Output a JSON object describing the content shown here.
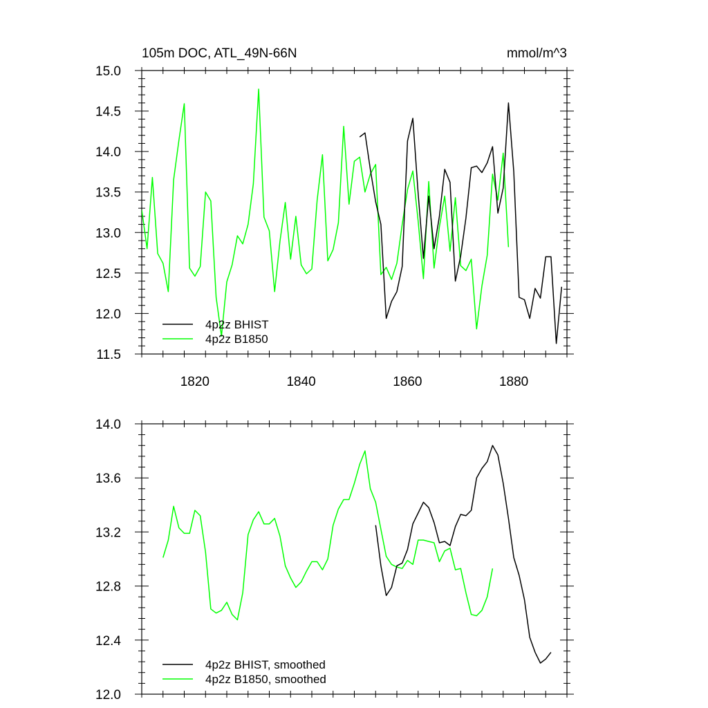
{
  "chart_data": [
    {
      "type": "line",
      "title": "105m DOC, ATL_49N-66N",
      "units": "mmol/m^3",
      "xlabel": "",
      "ylabel": "",
      "xlim": [
        1810,
        1890
      ],
      "ylim": [
        11.5,
        15.0
      ],
      "x_ticks": [
        1820,
        1840,
        1860,
        1880
      ],
      "x_tick_labels": [
        "1820",
        "1840",
        "1860",
        "1880"
      ],
      "y_ticks": [
        11.5,
        12.0,
        12.5,
        13.0,
        13.5,
        14.0,
        14.5,
        15.0
      ],
      "y_tick_labels": [
        "11.5",
        "12.0",
        "12.5",
        "13.0",
        "13.5",
        "14.0",
        "14.5",
        "15.0"
      ],
      "grid": false,
      "legend_position": "bottom-left",
      "series": [
        {
          "name": "4p2z BHIST",
          "color": "#000000",
          "x": [
            1851,
            1852,
            1853,
            1854,
            1855,
            1856,
            1857,
            1858,
            1859,
            1860,
            1861,
            1862,
            1863,
            1864,
            1865,
            1866,
            1867,
            1868,
            1869,
            1870,
            1871,
            1872,
            1873,
            1874,
            1875,
            1876,
            1877,
            1878,
            1879,
            1880,
            1881,
            1882,
            1883,
            1884,
            1885,
            1886,
            1887,
            1888,
            1889
          ],
          "y": [
            14.18,
            14.23,
            13.78,
            13.38,
            13.1,
            11.94,
            12.15,
            12.27,
            12.58,
            14.13,
            14.41,
            13.48,
            12.68,
            13.45,
            12.8,
            13.2,
            13.78,
            13.62,
            12.4,
            12.71,
            13.18,
            13.8,
            13.82,
            13.74,
            13.86,
            14.06,
            13.24,
            13.55,
            14.6,
            13.75,
            12.2,
            12.17,
            11.94,
            12.31,
            12.19,
            12.7,
            12.7,
            11.63,
            12.33
          ]
        },
        {
          "name": "4p2z B1850",
          "color": "#00ff00",
          "x": [
            1810,
            1811,
            1812,
            1813,
            1814,
            1815,
            1816,
            1817,
            1818,
            1819,
            1820,
            1821,
            1822,
            1823,
            1824,
            1825,
            1826,
            1827,
            1828,
            1829,
            1830,
            1831,
            1832,
            1833,
            1834,
            1835,
            1836,
            1837,
            1838,
            1839,
            1840,
            1841,
            1842,
            1843,
            1844,
            1845,
            1846,
            1847,
            1848,
            1849,
            1850,
            1851,
            1852,
            1853,
            1854,
            1855,
            1856,
            1857,
            1858,
            1859,
            1860,
            1861,
            1862,
            1863,
            1864,
            1865,
            1866,
            1867,
            1868,
            1869,
            1870,
            1871,
            1872,
            1873,
            1874,
            1875,
            1876,
            1877,
            1878,
            1879,
            1880
          ],
          "y": [
            13.28,
            12.8,
            13.68,
            12.74,
            12.62,
            12.27,
            13.65,
            14.14,
            14.59,
            12.56,
            12.46,
            12.58,
            13.5,
            13.39,
            12.2,
            11.72,
            12.39,
            12.6,
            12.96,
            12.86,
            13.1,
            13.6,
            14.77,
            13.19,
            13.02,
            12.27,
            12.89,
            13.37,
            12.67,
            13.2,
            12.6,
            12.49,
            12.55,
            13.4,
            13.96,
            12.65,
            12.79,
            13.12,
            14.31,
            13.35,
            13.88,
            13.93,
            13.5,
            13.72,
            13.84,
            12.48,
            12.57,
            12.42,
            12.62,
            13.1,
            13.53,
            13.76,
            13.14,
            12.43,
            13.63,
            12.56,
            13.07,
            13.45,
            12.77,
            13.43,
            12.59,
            12.53,
            12.67,
            11.81,
            12.34,
            12.72,
            13.72,
            13.4,
            13.98,
            12.82,
            null
          ]
        }
      ]
    },
    {
      "type": "line",
      "title": "",
      "xlabel": "",
      "ylabel": "",
      "xlim": [
        1810,
        1890
      ],
      "ylim": [
        12.0,
        14.0
      ],
      "x_ticks": [
        1820,
        1840,
        1860,
        1880
      ],
      "x_tick_labels": [],
      "y_ticks": [
        12.0,
        12.4,
        12.8,
        13.2,
        13.6,
        14.0
      ],
      "y_tick_labels": [
        "12.0",
        "12.4",
        "12.8",
        "13.2",
        "13.6",
        "14.0"
      ],
      "grid": false,
      "legend_position": "bottom-left",
      "series": [
        {
          "name": "4p2z BHIST, smoothed",
          "color": "#000000",
          "x": [
            1854,
            1855,
            1856,
            1857,
            1858,
            1859,
            1860,
            1861,
            1862,
            1863,
            1864,
            1865,
            1866,
            1867,
            1868,
            1869,
            1870,
            1871,
            1872,
            1873,
            1874,
            1875,
            1876,
            1877,
            1878,
            1879,
            1880,
            1881,
            1882,
            1883,
            1884,
            1885,
            1886,
            1887
          ],
          "y": [
            13.25,
            12.95,
            12.73,
            12.79,
            12.95,
            12.97,
            13.07,
            13.26,
            13.34,
            13.42,
            13.38,
            13.27,
            13.12,
            13.13,
            13.1,
            13.24,
            13.33,
            13.32,
            13.36,
            13.6,
            13.67,
            13.72,
            13.84,
            13.77,
            13.56,
            13.3,
            13.01,
            12.88,
            12.7,
            12.42,
            12.31,
            12.23,
            12.26,
            12.31
          ]
        },
        {
          "name": "4p2z B1850, smoothed",
          "color": "#00ff00",
          "x": [
            1814,
            1815,
            1816,
            1817,
            1818,
            1819,
            1820,
            1821,
            1822,
            1823,
            1824,
            1825,
            1826,
            1827,
            1828,
            1829,
            1830,
            1831,
            1832,
            1833,
            1834,
            1835,
            1836,
            1837,
            1838,
            1839,
            1840,
            1841,
            1842,
            1843,
            1844,
            1845,
            1846,
            1847,
            1848,
            1849,
            1850,
            1851,
            1852,
            1853,
            1854,
            1855,
            1856,
            1857,
            1858,
            1859,
            1860,
            1861,
            1862,
            1863,
            1864,
            1865,
            1866,
            1867,
            1868,
            1869,
            1870,
            1871,
            1872,
            1873,
            1874,
            1875,
            1876
          ],
          "y": [
            13.01,
            13.14,
            13.39,
            13.23,
            13.19,
            13.19,
            13.36,
            13.32,
            13.05,
            12.63,
            12.6,
            12.62,
            12.68,
            12.59,
            12.55,
            12.75,
            13.18,
            13.29,
            13.35,
            13.26,
            13.26,
            13.3,
            13.17,
            12.95,
            12.86,
            12.79,
            12.83,
            12.91,
            12.98,
            12.98,
            12.92,
            13.0,
            13.25,
            13.37,
            13.44,
            13.44,
            13.56,
            13.7,
            13.8,
            13.52,
            13.42,
            13.22,
            13.02,
            12.96,
            12.94,
            12.93,
            12.99,
            12.96,
            13.14,
            13.14,
            13.13,
            13.12,
            12.98,
            13.06,
            13.08,
            12.92,
            12.93,
            12.75,
            12.59,
            12.58,
            12.62,
            12.72,
            12.93
          ]
        }
      ]
    }
  ]
}
